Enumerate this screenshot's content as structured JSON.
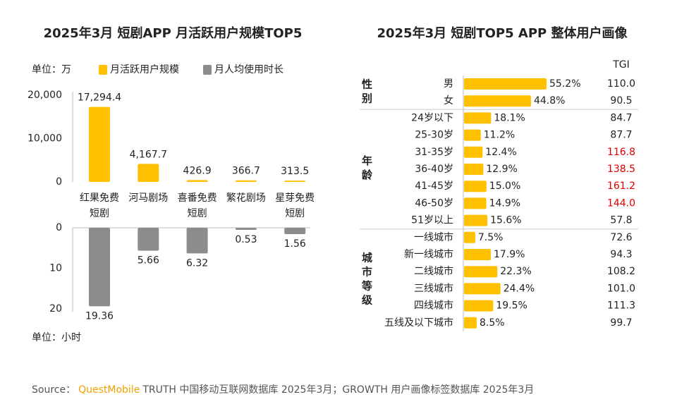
{
  "chart_data": [
    {
      "type": "bar",
      "title": "2025年3月 短剧APP 月活跃用户规模TOP5",
      "categories": [
        [
          "红果免费",
          "短剧"
        ],
        [
          "河马剧场"
        ],
        [
          "喜番免费",
          "短剧"
        ],
        [
          "繁花剧场"
        ],
        [
          "星芽免费",
          "短剧"
        ]
      ],
      "unit_label": "单位：万",
      "y2_unit_label": "单位：小时",
      "ylim": [
        0,
        20000
      ],
      "yticks": [
        0,
        {
          "value": 10000,
          "label": "10,000"
        },
        {
          "value": 20000,
          "label": "20,000"
        }
      ],
      "y2lim": [
        0,
        20
      ],
      "y2ticks": [
        0,
        10,
        20
      ],
      "series": [
        {
          "name": "月活跃用户规模",
          "color": "#ffc000",
          "values": [
            17294.4,
            4167.7,
            426.9,
            366.7,
            313.5
          ],
          "value_labels": [
            "17,294.4",
            "4,167.7",
            "426.9",
            "366.7",
            "313.5"
          ]
        },
        {
          "name": "月人均使用时长",
          "color": "#8c8c8c",
          "axis": "y2",
          "values": [
            19.36,
            5.66,
            6.32,
            0.53,
            1.56
          ]
        }
      ]
    },
    {
      "type": "hbar",
      "title": "2025年3月 短剧TOP5 APP 整体用户画像",
      "tgi_title": "TGI",
      "color": "#ffc000",
      "groups": [
        {
          "label": "性别",
          "categories": [
            "男",
            "女"
          ],
          "values": [
            55.2,
            44.8
          ],
          "value_labels": [
            "55.2%",
            "44.8%"
          ],
          "tgi": [
            "110.0",
            "90.5"
          ],
          "tgi_colors": [
            "#222222",
            "#222222"
          ]
        },
        {
          "label": "年龄",
          "categories": [
            "24岁以下",
            "25-30岁",
            "31-35岁",
            "36-40岁",
            "41-45岁",
            "46-50岁",
            "51岁以上"
          ],
          "values": [
            18.1,
            11.2,
            12.4,
            12.9,
            15.0,
            14.9,
            15.6
          ],
          "value_labels": [
            "18.1%",
            "11.2%",
            "12.4%",
            "12.9%",
            "15.0%",
            "14.9%",
            "15.6%"
          ],
          "tgi": [
            "84.7",
            "87.7",
            "116.8",
            "138.5",
            "161.2",
            "144.0",
            "57.8"
          ],
          "tgi_colors": [
            "#222222",
            "#222222",
            "#e00000",
            "#e00000",
            "#e00000",
            "#e00000",
            "#222222"
          ]
        },
        {
          "label": "城市等级",
          "categories": [
            "一线城市",
            "新一线城市",
            "二线城市",
            "三线城市",
            "四线城市",
            "五线及以下城市"
          ],
          "values": [
            7.5,
            17.9,
            22.3,
            24.4,
            19.5,
            8.5
          ],
          "value_labels": [
            "7.5%",
            "17.9%",
            "22.3%",
            "24.4%",
            "19.5%",
            "8.5%"
          ],
          "tgi": [
            "72.6",
            "94.3",
            "108.2",
            "101.0",
            "111.3",
            "99.7"
          ],
          "tgi_colors": [
            "#222222",
            "#222222",
            "#222222",
            "#222222",
            "#222222",
            "#222222"
          ]
        }
      ]
    }
  ],
  "source": {
    "label": "Source：",
    "brand": "QuestMobile",
    "text": "TRUTH 中国移动互联网数据库 2025年3月；GROWTH 用户画像标签数据库 2025年3月"
  }
}
